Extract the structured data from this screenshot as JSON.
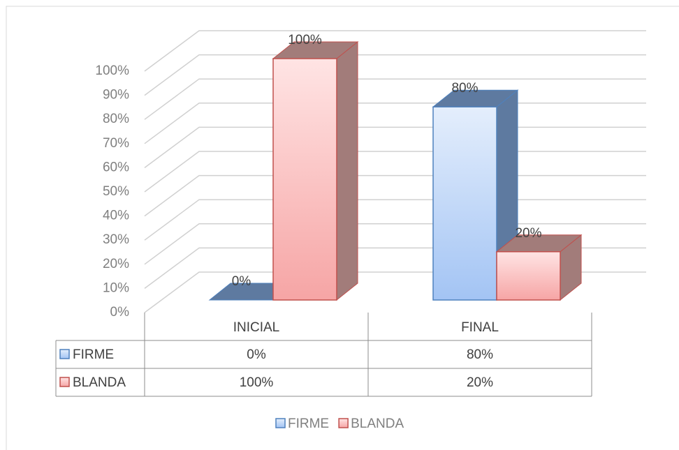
{
  "chart_data": {
    "type": "bar3d",
    "categories": [
      "INICIAL",
      "FINAL"
    ],
    "series": [
      {
        "name": "FIRME",
        "color": "#4f81bd",
        "values": [
          0,
          80
        ],
        "value_labels": [
          "0%",
          "80%"
        ]
      },
      {
        "name": "BLANDA",
        "color": "#c0504d",
        "values": [
          100,
          20
        ],
        "value_labels": [
          "100%",
          "20%"
        ]
      }
    ],
    "ylim": [
      0,
      100
    ],
    "yticks": [
      {
        "value": 0,
        "label": "0%"
      },
      {
        "value": 10,
        "label": "10%"
      },
      {
        "value": 20,
        "label": "20%"
      },
      {
        "value": 30,
        "label": "30%"
      },
      {
        "value": 40,
        "label": "40%"
      },
      {
        "value": 50,
        "label": "50%"
      },
      {
        "value": 60,
        "label": "60%"
      },
      {
        "value": 70,
        "label": "70%"
      },
      {
        "value": 80,
        "label": "80%"
      },
      {
        "value": 90,
        "label": "90%"
      },
      {
        "value": 100,
        "label": "100%"
      }
    ],
    "grid": true,
    "legend": "bottom",
    "data_table": true
  }
}
